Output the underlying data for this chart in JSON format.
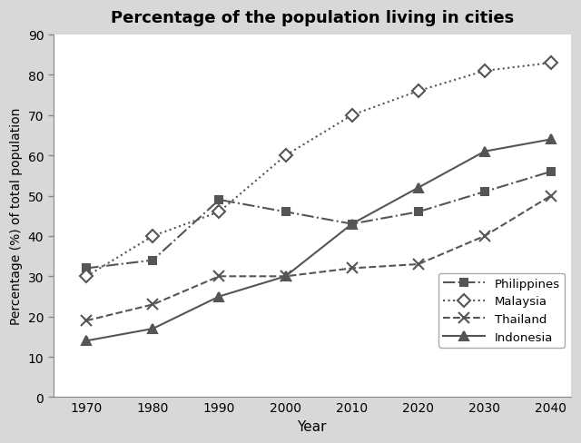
{
  "title": "Percentage of the population living in cities",
  "xlabel": "Year",
  "ylabel": "Percentage (%) of total population",
  "years": [
    1970,
    1980,
    1990,
    2000,
    2010,
    2020,
    2030,
    2040
  ],
  "series": {
    "Philippines": {
      "values": [
        32,
        34,
        49,
        46,
        43,
        46,
        51,
        56
      ],
      "color": "#555555",
      "linestyle": "-.",
      "marker": "s",
      "markerfacecolor": "#555555",
      "markeredgecolor": "#555555",
      "markersize": 6,
      "label": "Philippines"
    },
    "Malaysia": {
      "values": [
        30,
        40,
        46,
        60,
        70,
        76,
        81,
        83
      ],
      "color": "#555555",
      "linestyle": ":",
      "marker": "D",
      "markerfacecolor": "white",
      "markeredgecolor": "#555555",
      "markersize": 7,
      "label": "Malaysia"
    },
    "Thailand": {
      "values": [
        19,
        23,
        30,
        30,
        32,
        33,
        40,
        50
      ],
      "color": "#555555",
      "linestyle": "--",
      "marker": "x",
      "markerfacecolor": "#555555",
      "markeredgecolor": "#555555",
      "markersize": 8,
      "label": "Thailand"
    },
    "Indonesia": {
      "values": [
        14,
        17,
        25,
        30,
        43,
        52,
        61,
        64
      ],
      "color": "#555555",
      "linestyle": "-",
      "marker": "^",
      "markerfacecolor": "#555555",
      "markeredgecolor": "#555555",
      "markersize": 7,
      "label": "Indonesia"
    }
  },
  "ylim": [
    0,
    90
  ],
  "yticks": [
    0,
    10,
    20,
    30,
    40,
    50,
    60,
    70,
    80,
    90
  ],
  "background_color": "#ffffff",
  "fig_background": "#d8d8d8"
}
